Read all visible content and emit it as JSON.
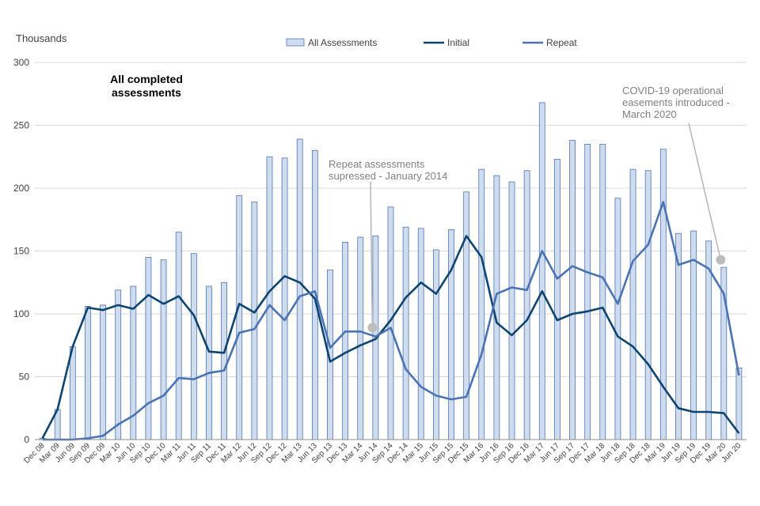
{
  "chart_data": {
    "type": "bar",
    "title": "All completed assessments",
    "title_lines": [
      "All completed",
      "assessments"
    ],
    "ylabel": "Thousands",
    "xlabel": "",
    "ylim": [
      0,
      300
    ],
    "yticks": [
      0,
      50,
      100,
      150,
      200,
      250,
      300
    ],
    "grid": true,
    "legend_position": "top",
    "categories": [
      "Dec 08",
      "Mar 09",
      "Jun 09",
      "Sep 09",
      "Dec 09",
      "Mar 10",
      "Jun 10",
      "Sep 10",
      "Dec 10",
      "Mar 11",
      "Jun 11",
      "Sep 11",
      "Dec 11",
      "Mar 12",
      "Jun 12",
      "Sep 12",
      "Dec 12",
      "Mar 13",
      "Jun 13",
      "Sep 13",
      "Dec 13",
      "Mar 14",
      "Jun 14",
      "Sep 14",
      "Dec 14",
      "Mar 15",
      "Jun 15",
      "Sep 15",
      "Dec 15",
      "Mar 16",
      "Jun 16",
      "Sep 16",
      "Dec 16",
      "Mar 17",
      "Jun 17",
      "Sep 17",
      "Dec 17",
      "Mar 18",
      "Jun 18",
      "Sep 18",
      "Dec 18",
      "Mar 19",
      "Jun 19",
      "Sep 19",
      "Dec 19",
      "Mar 20",
      "Jun 20"
    ],
    "series": [
      {
        "name": "All Assessments",
        "kind": "bar",
        "color": "#cfdcee",
        "edge": "#4f76b4",
        "values": [
          1,
          24,
          74,
          106,
          107,
          119,
          122,
          145,
          143,
          165,
          148,
          122,
          125,
          194,
          189,
          225,
          224,
          239,
          230,
          135,
          157,
          161,
          162,
          185,
          169,
          168,
          151,
          167,
          197,
          215,
          210,
          205,
          214,
          268,
          223,
          238,
          235,
          235,
          192,
          215,
          214,
          231,
          164,
          166,
          158,
          137,
          57
        ]
      },
      {
        "name": "Initial",
        "kind": "line",
        "color": "#0e4470",
        "values": [
          1,
          24,
          74,
          105,
          103,
          107,
          104,
          115,
          108,
          114,
          99,
          70,
          69,
          108,
          101,
          118,
          130,
          125,
          112,
          62,
          69,
          75,
          80,
          95,
          113,
          125,
          116,
          135,
          162,
          145,
          93,
          83,
          95,
          118,
          95,
          100,
          102,
          105,
          82,
          74,
          60,
          42,
          25,
          22,
          22,
          21,
          5
        ]
      },
      {
        "name": "Repeat",
        "kind": "line",
        "color": "#4a73b3",
        "values": [
          0,
          0,
          0,
          1,
          3,
          12,
          19,
          29,
          35,
          49,
          48,
          53,
          55,
          85,
          88,
          107,
          95,
          114,
          118,
          73,
          86,
          86,
          82,
          89,
          56,
          42,
          35,
          32,
          34,
          68,
          116,
          121,
          119,
          150,
          128,
          138,
          133,
          129,
          108,
          142,
          155,
          189,
          139,
          143,
          136,
          116,
          51
        ]
      }
    ],
    "annotations": [
      {
        "id": "repeat-suppressed",
        "lines": [
          "Repeat assessments",
          "supressed - January 2014"
        ],
        "category": "Jun 14",
        "value": 89
      },
      {
        "id": "covid",
        "lines": [
          "COVID-19 operational",
          "easements introduced -",
          "March 2020"
        ],
        "category": "Mar 20",
        "value": 143
      }
    ]
  }
}
